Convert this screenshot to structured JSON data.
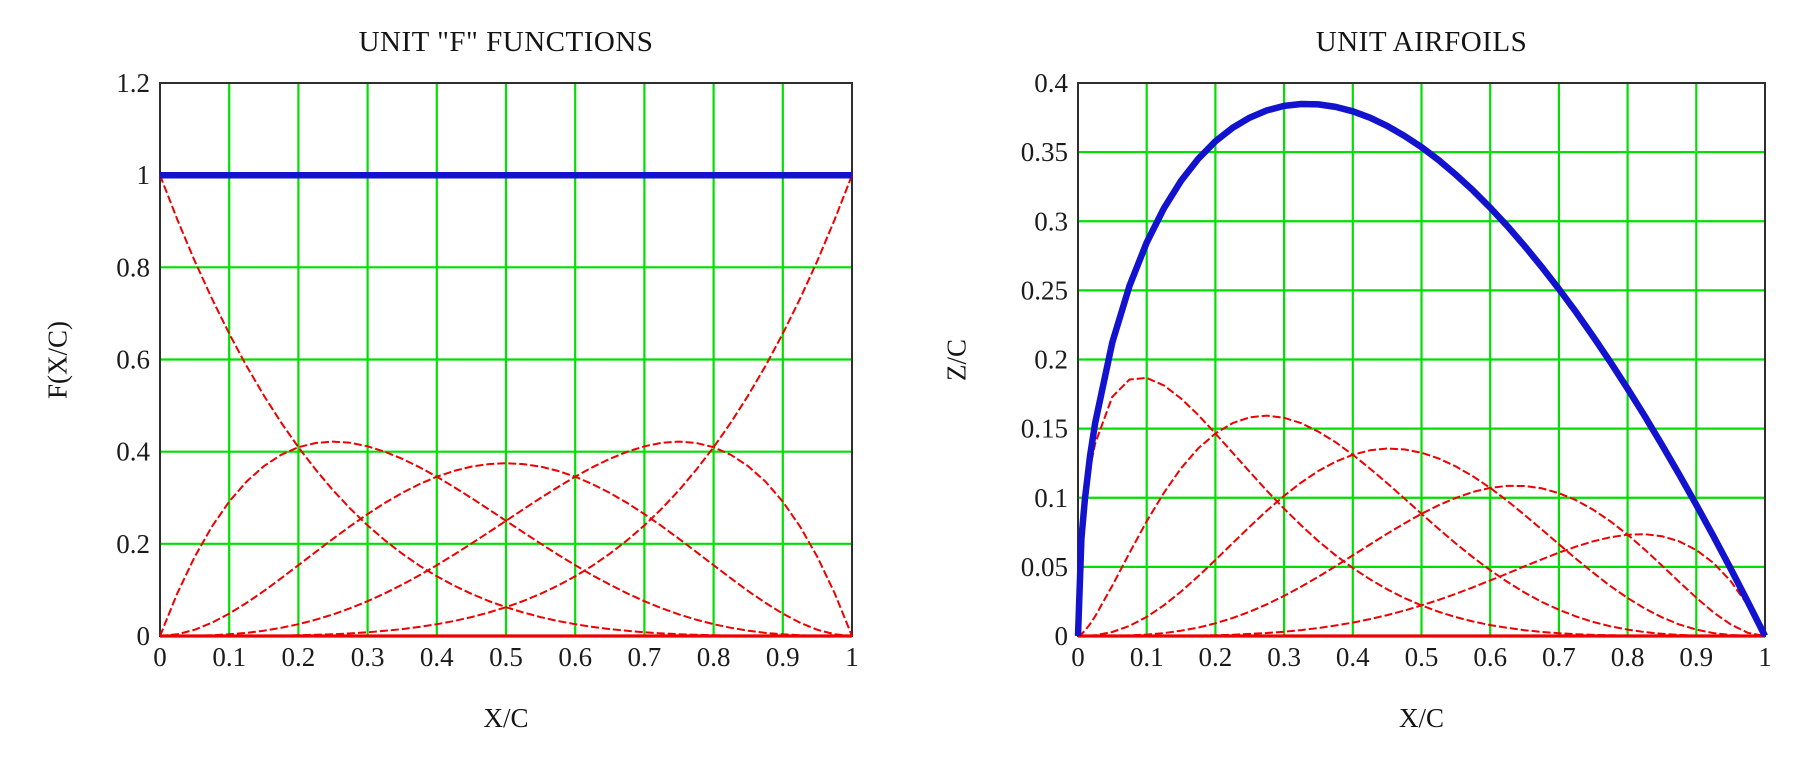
{
  "page": {
    "background": "#ffffff",
    "text_color": "#1b1b1b"
  },
  "chart_data": [
    {
      "type": "line",
      "title": "UNIT \"F\" FUNCTIONS",
      "xlabel": "X/C",
      "ylabel": "F(X/C)",
      "xlim": [
        0,
        1
      ],
      "ylim": [
        0,
        1.2
      ],
      "grid": true,
      "grid_color": "#00df00",
      "frame_color": "#2e2e2e",
      "legend": "none",
      "x_ticks": {
        "values": [
          0,
          0.1,
          0.2,
          0.3,
          0.4,
          0.5,
          0.6,
          0.7,
          0.8,
          0.9,
          1
        ],
        "labels": [
          "0",
          "0.1",
          "0.2",
          "0.3",
          "0.4",
          "0.5",
          "0.6",
          "0.7",
          "0.8",
          "0.9",
          "1"
        ]
      },
      "y_ticks": {
        "values": [
          0,
          0.2,
          0.4,
          0.6,
          0.8,
          1,
          1.2
        ],
        "labels": [
          "0",
          "0.2",
          "0.4",
          "0.6",
          "0.8",
          "1",
          "1.2"
        ]
      },
      "x": [
        0,
        0.025,
        0.05,
        0.075,
        0.1,
        0.125,
        0.15,
        0.175,
        0.2,
        0.225,
        0.25,
        0.275,
        0.3,
        0.325,
        0.35,
        0.375,
        0.4,
        0.425,
        0.45,
        0.475,
        0.5,
        0.525,
        0.55,
        0.575,
        0.6,
        0.625,
        0.65,
        0.675,
        0.7,
        0.725,
        0.75,
        0.775,
        0.8,
        0.825,
        0.85,
        0.875,
        0.9,
        0.925,
        0.95,
        0.975,
        1
      ],
      "series": [
        {
          "name": "f0-bernstein-(1-x)^4",
          "color": "#ee0000",
          "width": 2,
          "dash": "8 3",
          "y": [
            1,
            0.9037,
            0.8145,
            0.7321,
            0.6561,
            0.5862,
            0.522,
            0.4633,
            0.4096,
            0.3608,
            0.3164,
            0.2763,
            0.2401,
            0.2076,
            0.1785,
            0.1526,
            0.1296,
            0.1093,
            0.0915,
            0.076,
            0.0625,
            0.0509,
            0.041,
            0.0326,
            0.0256,
            0.0198,
            0.015,
            0.0112,
            0.0081,
            0.0057,
            0.0039,
            0.0026,
            0.0016,
            0.0009,
            0.0005,
            0.0002,
            0.0001,
            0,
            0,
            0,
            0
          ]
        },
        {
          "name": "f1-bernstein-4x(1-x)^3",
          "color": "#ee0000",
          "width": 2,
          "dash": "8 3",
          "y": [
            0,
            0.0927,
            0.1715,
            0.2374,
            0.2916,
            0.335,
            0.3685,
            0.3931,
            0.4096,
            0.4189,
            0.4219,
            0.4192,
            0.4116,
            0.3998,
            0.3845,
            0.3662,
            0.3456,
            0.3232,
            0.2995,
            0.2749,
            0.25,
            0.2251,
            0.2005,
            0.1766,
            0.1536,
            0.1318,
            0.1115,
            0.0927,
            0.0756,
            0.0603,
            0.0469,
            0.0353,
            0.0256,
            0.0177,
            0.0115,
            0.0068,
            0.0036,
            0.0016,
            0.0005,
            0.0001,
            0
          ]
        },
        {
          "name": "f2-bernstein-6x2(1-x)^2",
          "color": "#ee0000",
          "width": 2,
          "dash": "8 3",
          "y": [
            0,
            0.0036,
            0.0135,
            0.0289,
            0.0486,
            0.0718,
            0.0975,
            0.1251,
            0.1536,
            0.1824,
            0.2109,
            0.2385,
            0.2646,
            0.2888,
            0.3105,
            0.3296,
            0.3456,
            0.3583,
            0.3675,
            0.3731,
            0.375,
            0.3731,
            0.3675,
            0.3583,
            0.3456,
            0.3296,
            0.3105,
            0.2888,
            0.2646,
            0.2385,
            0.2109,
            0.1824,
            0.1536,
            0.1251,
            0.0975,
            0.0718,
            0.0486,
            0.0289,
            0.0135,
            0.0036,
            0
          ]
        },
        {
          "name": "f3-bernstein-4x3(1-x)",
          "color": "#ee0000",
          "width": 2,
          "dash": "8 3",
          "y": [
            0,
            0.0001,
            0.0005,
            0.0016,
            0.0036,
            0.0068,
            0.0115,
            0.0177,
            0.0256,
            0.0353,
            0.0469,
            0.0603,
            0.0756,
            0.0927,
            0.1115,
            0.1318,
            0.1536,
            0.1766,
            0.2005,
            0.2251,
            0.25,
            0.2749,
            0.2995,
            0.3232,
            0.3456,
            0.3662,
            0.3845,
            0.3998,
            0.4116,
            0.4192,
            0.4219,
            0.4189,
            0.4096,
            0.3931,
            0.3685,
            0.335,
            0.2916,
            0.2374,
            0.1715,
            0.0927,
            0
          ]
        },
        {
          "name": "f4-bernstein-x^4",
          "color": "#ee0000",
          "width": 2,
          "dash": "8 3",
          "y": [
            0,
            0,
            0,
            0,
            0.0001,
            0.0002,
            0.0005,
            0.0009,
            0.0016,
            0.0026,
            0.0039,
            0.0057,
            0.0081,
            0.0112,
            0.015,
            0.0198,
            0.0256,
            0.0326,
            0.041,
            0.0509,
            0.0625,
            0.076,
            0.0915,
            0.1093,
            0.1296,
            0.1526,
            0.1785,
            0.2076,
            0.2401,
            0.2763,
            0.3164,
            0.3608,
            0.4096,
            0.4633,
            0.522,
            0.5862,
            0.6561,
            0.7321,
            0.8145,
            0.9037,
            1
          ]
        },
        {
          "name": "zero-baseline",
          "color": "#ee0000",
          "width": 3.2,
          "x": [
            0,
            1
          ],
          "y": [
            0,
            0
          ]
        },
        {
          "name": "sum-of-f-functions",
          "color": "#1212cf",
          "width": 6.5,
          "x": [
            0,
            1
          ],
          "y": [
            1,
            1
          ]
        }
      ]
    },
    {
      "type": "line",
      "title": "UNIT AIRFOILS",
      "xlabel": "X/C",
      "ylabel": "Z/C",
      "xlim": [
        0,
        1
      ],
      "ylim": [
        0,
        0.4
      ],
      "grid": true,
      "grid_color": "#00df00",
      "frame_color": "#2e2e2e",
      "legend": "none",
      "x_ticks": {
        "values": [
          0,
          0.1,
          0.2,
          0.3,
          0.4,
          0.5,
          0.6,
          0.7,
          0.8,
          0.9,
          1
        ],
        "labels": [
          "0",
          "0.1",
          "0.2",
          "0.3",
          "0.4",
          "0.5",
          "0.6",
          "0.7",
          "0.8",
          "0.9",
          "1"
        ]
      },
      "y_ticks": {
        "values": [
          0,
          0.05,
          0.1,
          0.15,
          0.2,
          0.25,
          0.3,
          0.35,
          0.4
        ],
        "labels": [
          "0",
          "0.05",
          "0.1",
          "0.15",
          "0.2",
          "0.25",
          "0.3",
          "0.35",
          "0.4"
        ]
      },
      "x": [
        0,
        0.005,
        0.01,
        0.0175,
        0.025,
        0.05,
        0.075,
        0.1,
        0.125,
        0.15,
        0.175,
        0.2,
        0.225,
        0.25,
        0.275,
        0.3,
        0.325,
        0.35,
        0.375,
        0.4,
        0.425,
        0.45,
        0.475,
        0.5,
        0.525,
        0.55,
        0.575,
        0.6,
        0.625,
        0.65,
        0.675,
        0.7,
        0.725,
        0.75,
        0.775,
        0.8,
        0.825,
        0.85,
        0.875,
        0.9,
        0.925,
        0.95,
        0.975,
        1
      ],
      "series": [
        {
          "name": "airfoil0-sqrtx(1-x)^5",
          "color": "#ee0000",
          "width": 2,
          "dash": "8 3",
          "y": [
            0,
            0.069,
            0.0951,
            0.1211,
            0.1393,
            0.173,
            0.1855,
            0.1867,
            0.1813,
            0.1718,
            0.1599,
            0.1465,
            0.1326,
            0.1187,
            0.105,
            0.0921,
            0.0799,
            0.0686,
            0.0584,
            0.0492,
            0.041,
            0.0338,
            0.0275,
            0.0221,
            0.0175,
            0.0137,
            0.0105,
            0.0079,
            0.0059,
            0.0042,
            0.003,
            0.002,
            0.0013,
            0.0008,
            0.0005,
            0.0003,
            0.0001,
            0.0001,
            0,
            0,
            0,
            0,
            0,
            0
          ]
        },
        {
          "name": "airfoil1-4x15(1-x)^4",
          "color": "#ee0000",
          "width": 2,
          "dash": "8 3",
          "y": [
            0,
            0.0014,
            0.0038,
            0.0086,
            0.0143,
            0.0364,
            0.0601,
            0.083,
            0.1036,
            0.1213,
            0.1357,
            0.1465,
            0.154,
            0.1582,
            0.1594,
            0.1578,
            0.1539,
            0.1478,
            0.1402,
            0.1311,
            0.1211,
            0.1105,
            0.0995,
            0.0884,
            0.0775,
            0.0669,
            0.0569,
            0.0476,
            0.0391,
            0.0315,
            0.0247,
            0.019,
            0.0141,
            0.0101,
            0.007,
            0.0046,
            0.0028,
            0.0016,
            0.0008,
            0.0003,
            0.0001,
            0,
            0,
            0
          ]
        },
        {
          "name": "airfoil2-6x25(1-x)^3",
          "color": "#ee0000",
          "width": 2,
          "dash": "8 3",
          "y": [
            0,
            0,
            0.0001,
            0.0002,
            0.0005,
            0.0029,
            0.0073,
            0.0138,
            0.0222,
            0.0321,
            0.0432,
            0.055,
            0.0671,
            0.0791,
            0.0907,
            0.1014,
            0.1111,
            0.1194,
            0.1261,
            0.1311,
            0.1343,
            0.1356,
            0.135,
            0.1326,
            0.1284,
            0.1227,
            0.1155,
            0.1071,
            0.0977,
            0.0876,
            0.0771,
            0.0664,
            0.0558,
            0.0457,
            0.0361,
            0.0275,
            0.0199,
            0.0135,
            0.0084,
            0.0046,
            0.0021,
            0.0007,
            0.0001,
            0
          ]
        },
        {
          "name": "airfoil3-4x35(1-x)^2",
          "color": "#ee0000",
          "width": 2,
          "dash": "8 3",
          "y": [
            0,
            0,
            0,
            0,
            0,
            0.0001,
            0.0004,
            0.001,
            0.0021,
            0.0038,
            0.0061,
            0.0092,
            0.013,
            0.0176,
            0.0229,
            0.029,
            0.0357,
            0.0429,
            0.0505,
            0.0583,
            0.0662,
            0.074,
            0.0814,
            0.0884,
            0.0946,
            0.0999,
            0.1042,
            0.1071,
            0.1086,
            0.1085,
            0.1068,
            0.1033,
            0.0982,
            0.0913,
            0.083,
            0.0733,
            0.0625,
            0.051,
            0.0392,
            0.0277,
            0.0171,
            0.0084,
            0.0023,
            0
          ]
        },
        {
          "name": "airfoil4-x45(1-x)",
          "color": "#ee0000",
          "width": 2,
          "dash": "8 3",
          "y": [
            0,
            0,
            0,
            0,
            0,
            0,
            0,
            0,
            0.0001,
            0.0002,
            0.0003,
            0.0006,
            0.0009,
            0.0015,
            0.0022,
            0.0031,
            0.0043,
            0.0058,
            0.0076,
            0.0097,
            0.0122,
            0.0151,
            0.0184,
            0.0221,
            0.0261,
            0.0305,
            0.0352,
            0.0402,
            0.0452,
            0.0504,
            0.0554,
            0.0603,
            0.0647,
            0.0685,
            0.0715,
            0.0733,
            0.0736,
            0.0722,
            0.0685,
            0.0622,
            0.0528,
            0.0397,
            0.0223,
            0
          ]
        },
        {
          "name": "zero-baseline",
          "color": "#ee0000",
          "width": 3.2,
          "x": [
            0,
            1
          ],
          "y": [
            0,
            0
          ]
        },
        {
          "name": "sum-envelope-sqrtx(1-x)",
          "color": "#1212cf",
          "width": 6.5,
          "y": [
            0,
            0.0704,
            0.099,
            0.13,
            0.1542,
            0.2124,
            0.2533,
            0.2846,
            0.3094,
            0.3292,
            0.3451,
            0.3578,
            0.3676,
            0.375,
            0.3802,
            0.3834,
            0.3848,
            0.3845,
            0.3827,
            0.3795,
            0.3749,
            0.369,
            0.3618,
            0.3536,
            0.3442,
            0.3337,
            0.3223,
            0.3098,
            0.2965,
            0.2822,
            0.267,
            0.251,
            0.2342,
            0.2165,
            0.1981,
            0.1789,
            0.159,
            0.1383,
            0.1169,
            0.0949,
            0.0721,
            0.0487,
            0.0247,
            0
          ]
        }
      ]
    }
  ]
}
